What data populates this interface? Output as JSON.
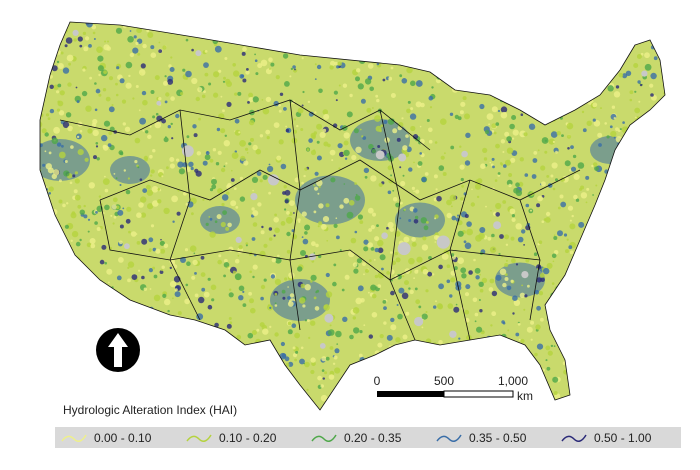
{
  "legend": {
    "title": "Hydrologic Alteration Index (HAI)",
    "items": [
      {
        "label": "0.00 - 0.10",
        "color": "#eef08a"
      },
      {
        "label": "0.10 - 0.20",
        "color": "#b5d33f"
      },
      {
        "label": "0.20 - 0.35",
        "color": "#4fa84a"
      },
      {
        "label": "0.35 - 0.50",
        "color": "#3a6ea8"
      },
      {
        "label": "0.50 - 1.00",
        "color": "#2b2a78"
      }
    ]
  },
  "scale_bar": {
    "ticks": [
      "0",
      "500",
      "1,000"
    ],
    "unit": "km"
  }
}
